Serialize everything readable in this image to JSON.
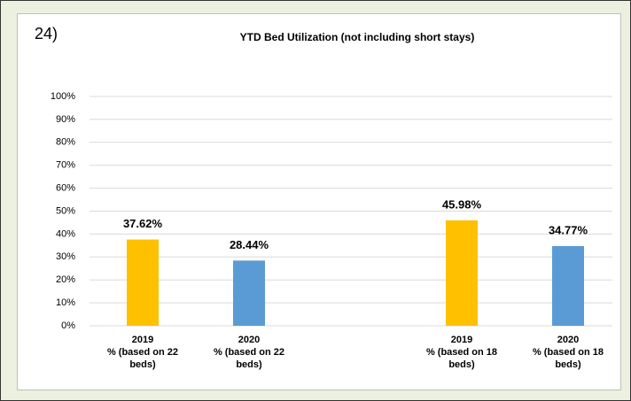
{
  "chart_data": {
    "type": "bar",
    "annotation": "24)",
    "title": "YTD Bed Utilization (not including short stays)",
    "categories": [
      "2019\n% (based on 22\nbeds)",
      "2020\n% (based on 22\nbeds)",
      null,
      "2019\n% (based on 18\nbeds)",
      "2020\n% (based on 18\nbeds)"
    ],
    "values": [
      37.62,
      28.44,
      null,
      45.98,
      34.77
    ],
    "value_labels": [
      "37.62%",
      "28.44%",
      null,
      "45.98%",
      "34.77%"
    ],
    "colors": [
      "#ffc000",
      "#5b9bd5",
      null,
      "#ffc000",
      "#5b9bd5"
    ],
    "ylim": [
      0,
      100
    ],
    "yticks": [
      {
        "value": 0,
        "label": "0%"
      },
      {
        "value": 10,
        "label": "10%"
      },
      {
        "value": 20,
        "label": "20%"
      },
      {
        "value": 30,
        "label": "30%"
      },
      {
        "value": 40,
        "label": "40%"
      },
      {
        "value": 50,
        "label": "50%"
      },
      {
        "value": 60,
        "label": "60%"
      },
      {
        "value": 70,
        "label": "70%"
      },
      {
        "value": 80,
        "label": "80%"
      },
      {
        "value": 90,
        "label": "90%"
      },
      {
        "value": 100,
        "label": "100%"
      }
    ],
    "grid": true
  }
}
